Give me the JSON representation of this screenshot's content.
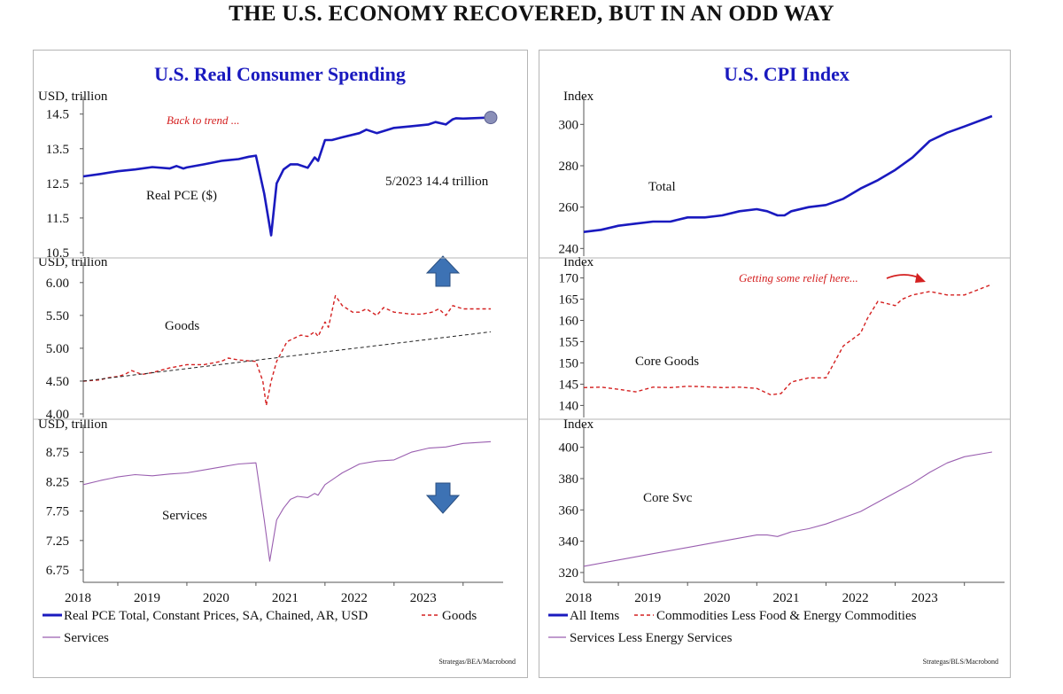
{
  "main_title": "THE U.S. ECONOMY RECOVERED, BUT IN AN ODD WAY",
  "colors": {
    "navy": "#1a1abf",
    "red": "#d42020",
    "purple": "#9a5fb0",
    "arrow": "#3d72b4"
  },
  "chart_data": [
    {
      "type": "line",
      "title": "U.S. Real Consumer Spending",
      "x_ticks": [
        "2018",
        "2019",
        "2020",
        "2021",
        "2022",
        "2023"
      ],
      "legend": [
        {
          "label": "Real PCE Total, Constant Prices, SA, Chained, AR, USD",
          "style": "solid-navy"
        },
        {
          "label": "Goods",
          "style": "dashed-red"
        },
        {
          "label": "Services",
          "style": "thin-purple"
        }
      ],
      "source": "Strategas/BEA/Macrobond",
      "panels": [
        {
          "ylabel": "USD, trillion",
          "ylim": [
            10.5,
            14.8
          ],
          "y_ticks": [
            "14.5",
            "13.5",
            "12.5",
            "11.5",
            "10.5"
          ],
          "series_label": "Real PCE ($)",
          "annotation": "5/2023 14.4 trillion",
          "callout": "Back to trend ...",
          "series": [
            {
              "name": "Real PCE Total, Constant Prices, SA, Chained, AR, USD",
              "x": [
                2017.5,
                2017.75,
                2018.0,
                2018.25,
                2018.5,
                2018.75,
                2018.85,
                2018.95,
                2019.0,
                2019.25,
                2019.5,
                2019.75,
                2019.9,
                2020.0,
                2020.12,
                2020.22,
                2020.3,
                2020.4,
                2020.5,
                2020.6,
                2020.75,
                2020.85,
                2020.9,
                2021.0,
                2021.1,
                2021.25,
                2021.5,
                2021.6,
                2021.75,
                2022.0,
                2022.25,
                2022.5,
                2022.6,
                2022.75,
                2022.85,
                2022.9,
                2023.0,
                2023.4
              ],
              "values": [
                12.7,
                12.77,
                12.85,
                12.9,
                12.97,
                12.93,
                13.0,
                12.93,
                12.96,
                13.05,
                13.15,
                13.2,
                13.27,
                13.3,
                12.2,
                11.0,
                12.5,
                12.9,
                13.05,
                13.05,
                12.95,
                13.25,
                13.15,
                13.75,
                13.75,
                13.83,
                13.95,
                14.05,
                13.95,
                14.1,
                14.15,
                14.2,
                14.27,
                14.2,
                14.35,
                14.38,
                14.37,
                14.4
              ]
            }
          ]
        },
        {
          "ylabel": "USD, trillion",
          "ylim": [
            4.0,
            6.2
          ],
          "y_ticks": [
            "6.00",
            "5.50",
            "5.00",
            "4.50",
            "4.00"
          ],
          "series_label": "Goods",
          "series": [
            {
              "name": "Goods",
              "x": [
                2017.5,
                2017.75,
                2017.85,
                2018.0,
                2018.1,
                2018.2,
                2018.35,
                2018.5,
                2018.75,
                2019.0,
                2019.25,
                2019.5,
                2019.6,
                2019.75,
                2020.0,
                2020.1,
                2020.15,
                2020.22,
                2020.3,
                2020.45,
                2020.55,
                2020.65,
                2020.75,
                2020.85,
                2020.9,
                2021.0,
                2021.05,
                2021.15,
                2021.25,
                2021.4,
                2021.5,
                2021.6,
                2021.75,
                2021.85,
                2022.0,
                2022.25,
                2022.4,
                2022.55,
                2022.65,
                2022.75,
                2022.85,
                2023.0,
                2023.4
              ],
              "values": [
                4.5,
                4.52,
                4.55,
                4.57,
                4.6,
                4.66,
                4.6,
                4.63,
                4.7,
                4.75,
                4.75,
                4.8,
                4.85,
                4.82,
                4.8,
                4.5,
                4.13,
                4.5,
                4.8,
                5.1,
                5.15,
                5.2,
                5.18,
                5.25,
                5.18,
                5.4,
                5.32,
                5.8,
                5.65,
                5.55,
                5.55,
                5.6,
                5.5,
                5.62,
                5.55,
                5.52,
                5.52,
                5.55,
                5.6,
                5.5,
                5.65,
                5.6,
                5.6
              ]
            },
            {
              "name": "Trend",
              "x": [
                2017.5,
                2023.4
              ],
              "values": [
                4.5,
                5.25
              ]
            }
          ]
        },
        {
          "ylabel": "USD, trillion",
          "ylim": [
            6.6,
            9.1
          ],
          "y_ticks": [
            "8.75",
            "8.25",
            "7.75",
            "7.25",
            "6.75"
          ],
          "series_label": "Services",
          "series": [
            {
              "name": "Services",
              "x": [
                2017.5,
                2017.75,
                2018.0,
                2018.25,
                2018.5,
                2018.75,
                2019.0,
                2019.25,
                2019.5,
                2019.75,
                2020.0,
                2020.12,
                2020.2,
                2020.3,
                2020.4,
                2020.5,
                2020.6,
                2020.75,
                2020.85,
                2020.9,
                2021.0,
                2021.25,
                2021.5,
                2021.75,
                2022.0,
                2022.25,
                2022.5,
                2022.75,
                2023.0,
                2023.4
              ],
              "values": [
                8.2,
                8.27,
                8.33,
                8.37,
                8.35,
                8.38,
                8.4,
                8.45,
                8.5,
                8.55,
                8.57,
                7.6,
                6.9,
                7.6,
                7.8,
                7.95,
                8.0,
                7.98,
                8.05,
                8.02,
                8.2,
                8.4,
                8.55,
                8.6,
                8.62,
                8.75,
                8.82,
                8.84,
                8.9,
                8.93
              ]
            }
          ]
        }
      ]
    },
    {
      "type": "line",
      "title": "U.S. CPI Index",
      "x_ticks": [
        "2018",
        "2019",
        "2020",
        "2021",
        "2022",
        "2023"
      ],
      "legend": [
        {
          "label": "All Items",
          "style": "solid-navy"
        },
        {
          "label": "Commodities Less Food & Energy Commodities",
          "style": "dashed-red"
        },
        {
          "label": "Services Less Energy Services",
          "style": "thin-purple"
        }
      ],
      "source": "Strategas/BLS/Macrobond",
      "panels": [
        {
          "ylabel": "Index",
          "ylim": [
            238,
            310
          ],
          "y_ticks": [
            "300",
            "280",
            "260",
            "240"
          ],
          "series_label": "Total",
          "series": [
            {
              "name": "All Items",
              "x": [
                2017.5,
                2017.75,
                2018.0,
                2018.25,
                2018.5,
                2018.75,
                2019.0,
                2019.25,
                2019.5,
                2019.75,
                2020.0,
                2020.15,
                2020.3,
                2020.4,
                2020.5,
                2020.75,
                2021.0,
                2021.25,
                2021.5,
                2021.75,
                2022.0,
                2022.25,
                2022.5,
                2022.75,
                2023.0,
                2023.4
              ],
              "values": [
                248,
                249,
                251,
                252,
                253,
                253,
                255,
                255,
                256,
                258,
                259,
                258,
                256,
                256,
                258,
                260,
                261,
                264,
                269,
                273,
                278,
                284,
                292,
                296,
                299,
                304
              ]
            }
          ]
        },
        {
          "ylabel": "Index",
          "ylim": [
            138,
            172
          ],
          "y_ticks": [
            "170",
            "165",
            "160",
            "155",
            "150",
            "145",
            "140"
          ],
          "series_label": "Core Goods",
          "callout": "Getting some relief here...",
          "series": [
            {
              "name": "Commodities Less Food & Energy Commodities",
              "x": [
                2017.5,
                2017.75,
                2018.0,
                2018.25,
                2018.5,
                2018.75,
                2019.0,
                2019.25,
                2019.5,
                2019.75,
                2020.0,
                2020.2,
                2020.35,
                2020.5,
                2020.75,
                2021.0,
                2021.25,
                2021.5,
                2021.6,
                2021.75,
                2022.0,
                2022.1,
                2022.25,
                2022.4,
                2022.5,
                2022.75,
                2023.0,
                2023.4
              ],
              "values": [
                144.2,
                144.3,
                143.8,
                143.2,
                144.3,
                144.2,
                144.5,
                144.4,
                144.2,
                144.3,
                144.0,
                142.5,
                142.8,
                145.5,
                146.5,
                146.5,
                154.0,
                157.0,
                160.5,
                164.5,
                163.5,
                165.0,
                166.0,
                166.5,
                166.8,
                166.0,
                166.0,
                168.5
              ]
            }
          ]
        },
        {
          "ylabel": "Index",
          "ylim": [
            316,
            410
          ],
          "y_ticks": [
            "400",
            "380",
            "360",
            "340",
            "320"
          ],
          "series_label": "Core Svc",
          "series": [
            {
              "name": "Services Less Energy Services",
              "x": [
                2017.5,
                2018.0,
                2018.5,
                2019.0,
                2019.5,
                2020.0,
                2020.15,
                2020.3,
                2020.5,
                2020.75,
                2021.0,
                2021.25,
                2021.5,
                2021.75,
                2022.0,
                2022.25,
                2022.5,
                2022.75,
                2023.0,
                2023.4
              ],
              "values": [
                324,
                328,
                332,
                336,
                340,
                344,
                344,
                343,
                346,
                348,
                351,
                355,
                359,
                365,
                371,
                377,
                384,
                390,
                394,
                397
              ]
            }
          ]
        }
      ]
    }
  ]
}
